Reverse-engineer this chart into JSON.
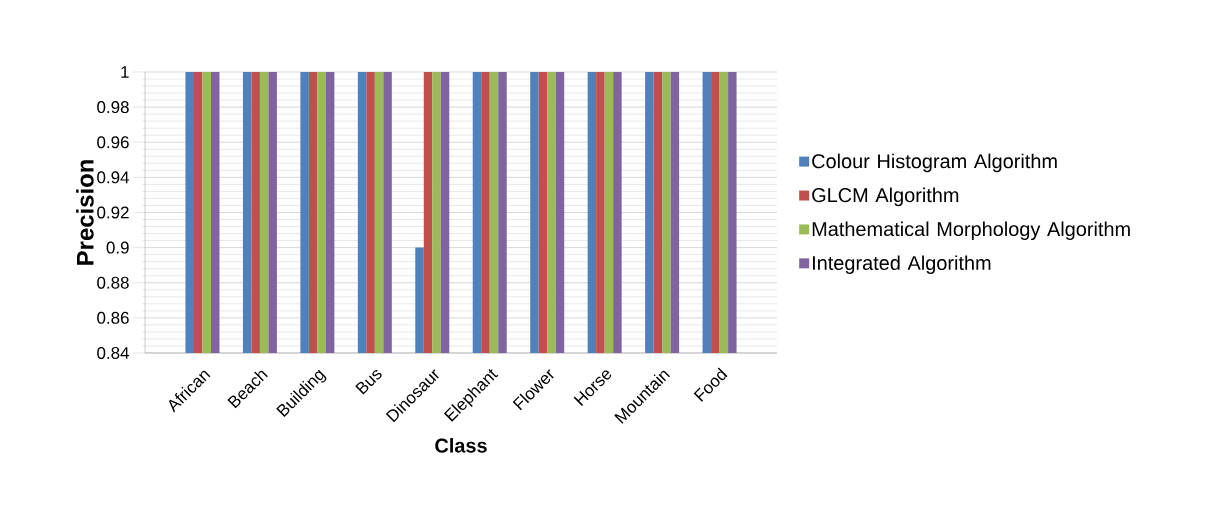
{
  "chart_data": {
    "type": "bar",
    "xlabel": "Class",
    "ylabel": "Precision",
    "categories": [
      "African",
      "Beach",
      "Building",
      "Bus",
      "Dinosaur",
      "Elephant",
      "Flower",
      "Horse",
      "Mountain",
      "Food"
    ],
    "series": [
      {
        "name": "Colour Histogram Algorithm",
        "color": "#4f81bd",
        "values": [
          1,
          1,
          1,
          1,
          0.9,
          1,
          1,
          1,
          1,
          1
        ]
      },
      {
        "name": "GLCM Algorithm",
        "color": "#c0504d",
        "values": [
          1,
          1,
          1,
          1,
          1,
          1,
          1,
          1,
          1,
          1
        ]
      },
      {
        "name": "Mathematical Morphology Algorithm",
        "color": "#9bbb59",
        "values": [
          1,
          1,
          1,
          1,
          1,
          1,
          1,
          1,
          1,
          1
        ]
      },
      {
        "name": "Integrated Algorithm",
        "color": "#8064a2",
        "values": [
          1,
          1,
          1,
          1,
          1,
          1,
          1,
          1,
          1,
          1
        ]
      }
    ],
    "ylim": [
      0.84,
      1
    ],
    "yticks": [
      0.84,
      0.86,
      0.88,
      0.9,
      0.92,
      0.94,
      0.96,
      0.98,
      1
    ],
    "grid": "y",
    "legend": "right"
  }
}
